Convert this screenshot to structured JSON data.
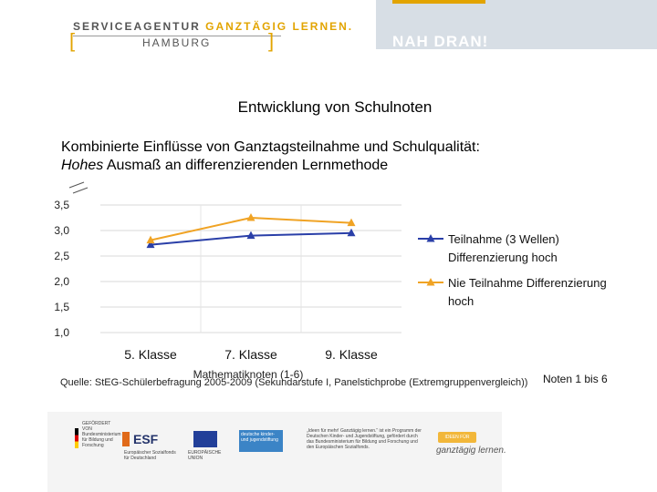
{
  "header": {
    "brand_prefix": "SERVICEAGENTUR ",
    "brand_accent": "GANZTÄGIG LERNEN.",
    "city": "HAMBURG",
    "slogan": "NAH DRAN!"
  },
  "slide": {
    "title": "Entwicklung von Schulnoten",
    "subtitle_line1": "Kombinierte Einflüsse von Ganztagsteilnahme und Schulqualität:",
    "subtitle_emph": "Hohes",
    "subtitle_rest": " Ausmaß an differenzierenden Lernmethode",
    "source": "Quelle: StEG-Schülerbefragung 2005-2009 (Sekundarstufe I, Panelstichprobe (Extremgruppenvergleich))",
    "notes": "Noten 1 bis 6"
  },
  "footer": {
    "logo1": "GEFÖRDERT VON",
    "logo1_sub": "Bundesministerium für Bildung und Forschung",
    "logo2": "ESF",
    "logo2_sub": "Europäischer Sozialfonds für Deutschland",
    "logo3_sub": "EUROPÄISCHE UNION",
    "logo4": "deutsche kinder- und jugendstiftung",
    "logo5": "„Ideen für mehr! Ganztägig lernen.“ ist ein Programm der Deutschen Kinder- und Jugendstiftung, gefördert durch das Bundesministerium für Bildung und Forschung und den Europäischen Sozialfonds.",
    "logo6": "IDEEN FÜR MEHR!",
    "logo6_sig": "ganztägig lernen."
  },
  "colors": {
    "series1": "#2a3fa8",
    "series2": "#f0a324",
    "accent": "#e2a400"
  },
  "chart_data": {
    "type": "line",
    "categories": [
      "5. Klasse",
      "7. Klasse",
      "9. Klasse"
    ],
    "series": [
      {
        "name": "Teilnahme  (3 Wellen) Differenzierung hoch",
        "label_line1": "Teilnahme  (3 Wellen)",
        "label_line2": "Differenzierung hoch",
        "values": [
          2.72,
          2.9,
          2.95
        ],
        "color": "#2a3fa8"
      },
      {
        "name": "Nie Teilnahme Differenzierung hoch",
        "label_line1": "Nie Teilnahme Differenzierung",
        "label_line2": "hoch",
        "values": [
          2.81,
          3.25,
          3.15
        ],
        "color": "#f0a324"
      }
    ],
    "yticks": [
      "3,5",
      "3,0",
      "2,5",
      "2,0",
      "1,5",
      "1,0"
    ],
    "ytick_values": [
      3.5,
      3.0,
      2.5,
      2.0,
      1.5,
      1.0
    ],
    "ylim": [
      1.0,
      3.5
    ],
    "xlabel": "Mathematiknoten (1-6)",
    "legend": "right",
    "grid": "horizontal"
  }
}
